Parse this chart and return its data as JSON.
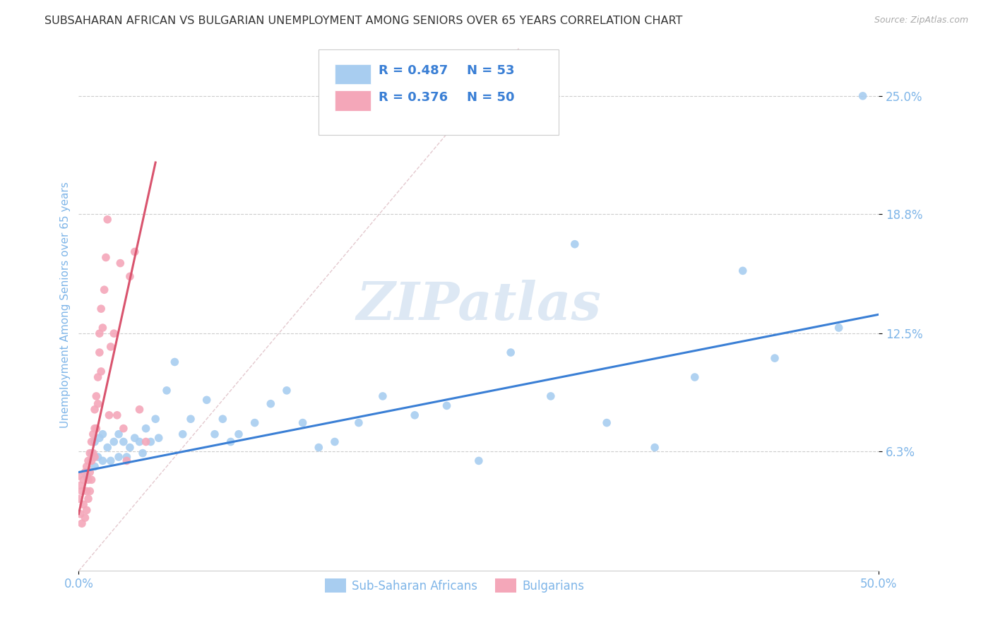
{
  "title": "SUBSAHARAN AFRICAN VS BULGARIAN UNEMPLOYMENT AMONG SENIORS OVER 65 YEARS CORRELATION CHART",
  "source": "Source: ZipAtlas.com",
  "ylabel": "Unemployment Among Seniors over 65 years",
  "xlim": [
    0.0,
    0.5
  ],
  "ylim": [
    0.0,
    0.28
  ],
  "ytick_positions": [
    0.063,
    0.125,
    0.188,
    0.25
  ],
  "ytick_labels": [
    "6.3%",
    "12.5%",
    "18.8%",
    "25.0%"
  ],
  "blue_color": "#a8cdf0",
  "pink_color": "#f4a7b9",
  "blue_line_color": "#3a7fd5",
  "pink_line_color": "#d9546e",
  "watermark": "ZIPatlas",
  "legend_r_blue": "0.487",
  "legend_n_blue": "53",
  "legend_r_pink": "0.376",
  "legend_n_pink": "50",
  "legend_label_blue": "Sub-Saharan Africans",
  "legend_label_pink": "Bulgarians",
  "blue_scatter_x": [
    0.005,
    0.008,
    0.01,
    0.01,
    0.012,
    0.013,
    0.015,
    0.015,
    0.018,
    0.02,
    0.022,
    0.025,
    0.025,
    0.028,
    0.03,
    0.032,
    0.035,
    0.038,
    0.04,
    0.042,
    0.045,
    0.048,
    0.05,
    0.055,
    0.06,
    0.065,
    0.07,
    0.08,
    0.085,
    0.09,
    0.095,
    0.1,
    0.11,
    0.12,
    0.13,
    0.14,
    0.15,
    0.16,
    0.175,
    0.19,
    0.21,
    0.23,
    0.25,
    0.27,
    0.295,
    0.31,
    0.33,
    0.36,
    0.385,
    0.415,
    0.435,
    0.475,
    0.49
  ],
  "blue_scatter_y": [
    0.05,
    0.062,
    0.055,
    0.068,
    0.06,
    0.07,
    0.058,
    0.072,
    0.065,
    0.058,
    0.068,
    0.06,
    0.072,
    0.068,
    0.06,
    0.065,
    0.07,
    0.068,
    0.062,
    0.075,
    0.068,
    0.08,
    0.07,
    0.095,
    0.11,
    0.072,
    0.08,
    0.09,
    0.072,
    0.08,
    0.068,
    0.072,
    0.078,
    0.088,
    0.095,
    0.078,
    0.065,
    0.068,
    0.078,
    0.092,
    0.082,
    0.087,
    0.058,
    0.115,
    0.092,
    0.172,
    0.078,
    0.065,
    0.102,
    0.158,
    0.112,
    0.128,
    0.25
  ],
  "pink_scatter_x": [
    0.0,
    0.0,
    0.001,
    0.001,
    0.002,
    0.002,
    0.003,
    0.003,
    0.004,
    0.004,
    0.005,
    0.005,
    0.005,
    0.006,
    0.006,
    0.006,
    0.007,
    0.007,
    0.007,
    0.008,
    0.008,
    0.008,
    0.009,
    0.009,
    0.01,
    0.01,
    0.01,
    0.011,
    0.011,
    0.012,
    0.012,
    0.013,
    0.013,
    0.014,
    0.014,
    0.015,
    0.016,
    0.017,
    0.018,
    0.019,
    0.02,
    0.022,
    0.024,
    0.026,
    0.028,
    0.03,
    0.032,
    0.035,
    0.038,
    0.042
  ],
  "pink_scatter_y": [
    0.05,
    0.038,
    0.045,
    0.03,
    0.042,
    0.025,
    0.048,
    0.035,
    0.052,
    0.028,
    0.055,
    0.042,
    0.032,
    0.058,
    0.048,
    0.038,
    0.062,
    0.052,
    0.042,
    0.068,
    0.058,
    0.048,
    0.072,
    0.062,
    0.085,
    0.075,
    0.06,
    0.092,
    0.075,
    0.102,
    0.088,
    0.125,
    0.115,
    0.138,
    0.105,
    0.128,
    0.148,
    0.165,
    0.185,
    0.082,
    0.118,
    0.125,
    0.082,
    0.162,
    0.075,
    0.058,
    0.155,
    0.168,
    0.085,
    0.068
  ],
  "blue_trend_x": [
    0.0,
    0.5
  ],
  "blue_trend_y": [
    0.052,
    0.135
  ],
  "pink_trend_x": [
    0.0,
    0.048
  ],
  "pink_trend_y": [
    0.03,
    0.215
  ],
  "diag_line_x": [
    0.0,
    0.275
  ],
  "diag_line_y": [
    0.0,
    0.275
  ],
  "title_color": "#333333",
  "axis_color": "#7eb5e8",
  "grid_color": "#cccccc",
  "watermark_color": "#dde8f4",
  "legend_text_color": "#3a7fd5"
}
